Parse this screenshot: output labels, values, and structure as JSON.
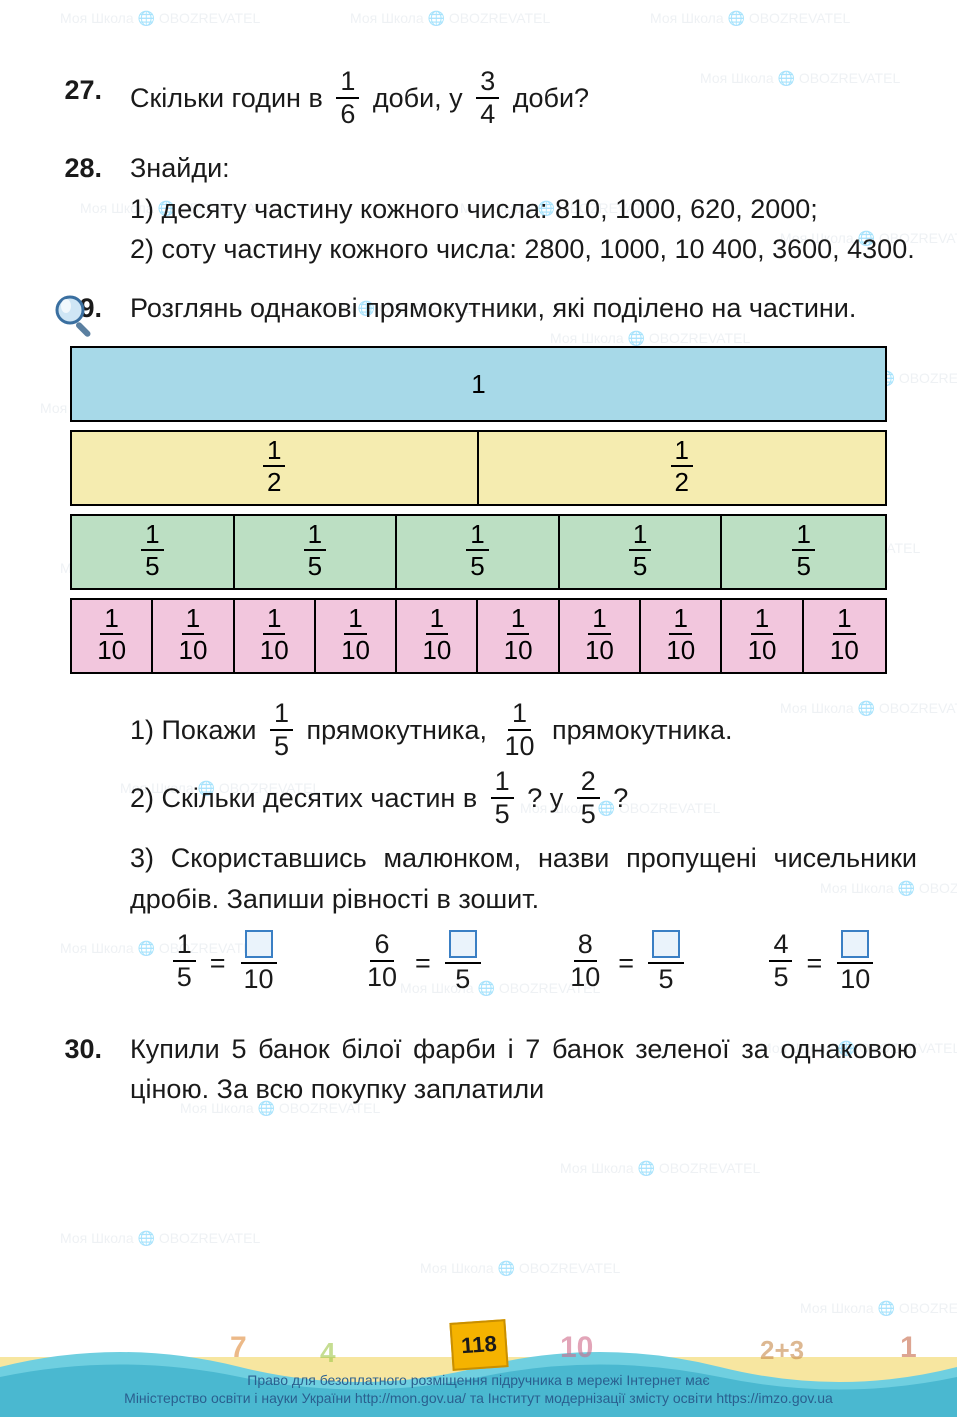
{
  "page_number": "118",
  "watermark_text": "Моя Школа 🌐 OBOZREVATEL",
  "problems": {
    "p27": {
      "num": "27.",
      "text_a": "Скільки годин в ",
      "f1_n": "1",
      "f1_d": "6",
      "text_b": " доби, у ",
      "f2_n": "3",
      "f2_d": "4",
      "text_c": " доби?"
    },
    "p28": {
      "num": "28.",
      "lead": "Знайди:",
      "l1": "1) десяту частину кожного числа: 810, 1000, 620, 2000;",
      "l2": "2) соту частину кожного числа: 2800, 1000, 10 400, 3600, 4300."
    },
    "p29": {
      "num": "29.",
      "lead": "Розглянь однакові прямокутники, які поділено на частини.",
      "bars": [
        {
          "color": "#a7d9e8",
          "cells": [
            {
              "label": "1"
            }
          ]
        },
        {
          "color": "#f5ecb0",
          "cells": [
            {
              "n": "1",
              "d": "2"
            },
            {
              "n": "1",
              "d": "2"
            }
          ]
        },
        {
          "color": "#bcdfc3",
          "cells": [
            {
              "n": "1",
              "d": "5"
            },
            {
              "n": "1",
              "d": "5"
            },
            {
              "n": "1",
              "d": "5"
            },
            {
              "n": "1",
              "d": "5"
            },
            {
              "n": "1",
              "d": "5"
            }
          ]
        },
        {
          "color": "#f2c6dd",
          "cells": [
            {
              "n": "1",
              "d": "10"
            },
            {
              "n": "1",
              "d": "10"
            },
            {
              "n": "1",
              "d": "10"
            },
            {
              "n": "1",
              "d": "10"
            },
            {
              "n": "1",
              "d": "10"
            },
            {
              "n": "1",
              "d": "10"
            },
            {
              "n": "1",
              "d": "10"
            },
            {
              "n": "1",
              "d": "10"
            },
            {
              "n": "1",
              "d": "10"
            },
            {
              "n": "1",
              "d": "10"
            }
          ]
        }
      ],
      "q1_a": "1) Покажи ",
      "q1_f1n": "1",
      "q1_f1d": "5",
      "q1_b": " прямокутника, ",
      "q1_f2n": "1",
      "q1_f2d": "10",
      "q1_c": " прямокутника.",
      "q2_a": "2) Скільки десятих частин в ",
      "q2_f1n": "1",
      "q2_f1d": "5",
      "q2_b": "? у ",
      "q2_f2n": "2",
      "q2_f2d": "5",
      "q2_c": "?",
      "q3_a": "3) Скориставшись малюнком, назви пропущені чисельники дробів. Запиши рівності в зошит.",
      "eqs": [
        {
          "ln": "1",
          "ld": "5",
          "rd": "10",
          "box": "top"
        },
        {
          "ln": "6",
          "ld": "10",
          "rd": "5",
          "box": "top"
        },
        {
          "ln": "8",
          "ld": "10",
          "rd": "5",
          "box": "top"
        },
        {
          "ln": "4",
          "ld": "5",
          "rd": "10",
          "box": "top"
        }
      ]
    },
    "p30": {
      "num": "30.",
      "text": "Купили 5 банок білої фарби і 7 банок зеленої за однаковою ціною. За всю покупку заплатили"
    }
  },
  "footer": {
    "l1": "Право для безоплатного розміщення підручника в мережі Інтернет має",
    "l2": "Міністерство освіти і науки України http://mon.gov.ua/ та Інститут модернізації змісту освіти https://imzo.gov.ua"
  }
}
